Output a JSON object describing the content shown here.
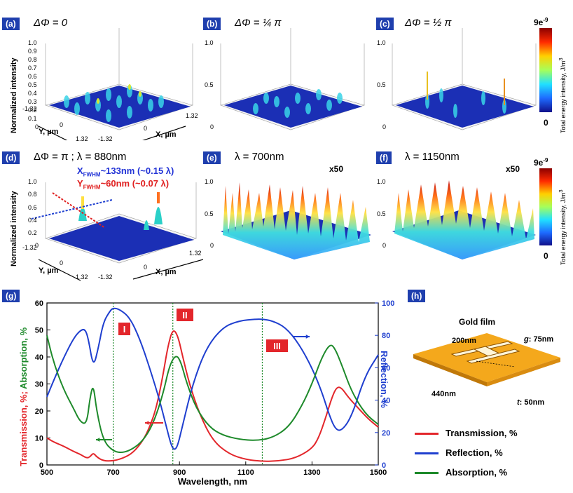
{
  "panels": {
    "a": {
      "tag": "(a)",
      "title": "ΔΦ = 0"
    },
    "b": {
      "tag": "(b)",
      "title": "ΔΦ = ¼ π"
    },
    "c": {
      "tag": "(c)",
      "title": "ΔΦ = ½ π"
    },
    "d": {
      "tag": "(d)",
      "title": "ΔΦ = π ; λ = 880nm",
      "xfwhm": "X",
      "xfwhm_sub": "FWHM",
      "xfwhm_val": "~133nm (~0.15 λ)",
      "yfwhm": "Y",
      "yfwhm_sub": "FWHM",
      "yfwhm_val": "~60nm (~0.07 λ)"
    },
    "e": {
      "tag": "(e)",
      "title": "λ = 700nm",
      "mult": "x50"
    },
    "f": {
      "tag": "(f)",
      "title": "λ = 1150nm",
      "mult": "x50"
    },
    "g": {
      "tag": "(g)"
    },
    "h": {
      "tag": "(h)"
    }
  },
  "surface_axes": {
    "z_ticks": [
      "1.0",
      "0.9",
      "0.8",
      "0.7",
      "0.6",
      "0.5",
      "0.4",
      "0.3",
      "0.2",
      "0.1",
      "0"
    ],
    "y_label": "Normalized intensity",
    "axis_y": "Y, µm",
    "axis_x": "X, µm",
    "t_neg": "-1.32",
    "t_zero": "0",
    "t_pos": "1.32"
  },
  "colorbar": {
    "max": "9e",
    "max_exp": "-9",
    "min": "0",
    "label": "Total energy intensity, J/m",
    "label_exp": "3"
  },
  "chart_data": {
    "type": "line",
    "xlabel": "Wavelength, nm",
    "ylabel_left": "Transmission, %; ",
    "ylabel_left2": "Absorption, %",
    "ylabel_right": "Reflection, %",
    "xlim": [
      500,
      1500
    ],
    "ylim_left": [
      0,
      60
    ],
    "ylim_right": [
      0,
      100
    ],
    "x_ticks": [
      "500",
      "700",
      "900",
      "1100",
      "1300",
      "1500"
    ],
    "y_left_ticks": [
      "0",
      "10",
      "20",
      "30",
      "40",
      "50",
      "60"
    ],
    "y_right_ticks": [
      "0",
      "20",
      "40",
      "60",
      "80",
      "100"
    ],
    "markers": [
      {
        "label": "I",
        "x": 700
      },
      {
        "label": "II",
        "x": 880
      },
      {
        "label": "III",
        "x": 1150
      }
    ],
    "series": [
      {
        "name": "Transmission, %",
        "color": "#e3262b",
        "axis": "left",
        "x": [
          500,
          520,
          550,
          580,
          600,
          620,
          630,
          640,
          650,
          670,
          700,
          730,
          760,
          790,
          810,
          830,
          850,
          865,
          880,
          895,
          910,
          930,
          960,
          1000,
          1050,
          1100,
          1150,
          1200,
          1250,
          1300,
          1320,
          1340,
          1360,
          1375,
          1390,
          1410,
          1440,
          1470,
          1500
        ],
        "y": [
          10,
          8.5,
          7,
          5,
          4,
          2.5,
          3,
          4.5,
          3,
          1.5,
          1.5,
          2.5,
          4.5,
          9,
          14,
          21,
          33,
          44,
          50.5,
          48,
          40,
          30,
          19,
          9,
          4,
          2,
          1.3,
          1.5,
          2.5,
          6,
          10,
          17,
          25,
          29,
          28.5,
          25,
          21,
          17,
          14
        ]
      },
      {
        "name": "Reflection, %",
        "color": "#1f3fcf",
        "axis": "right",
        "x": [
          500,
          520,
          550,
          580,
          600,
          615,
          625,
          640,
          655,
          670,
          690,
          700,
          720,
          750,
          780,
          810,
          840,
          860,
          875,
          885,
          895,
          910,
          940,
          980,
          1030,
          1080,
          1130,
          1150,
          1180,
          1220,
          1260,
          1300,
          1330,
          1350,
          1370,
          1390,
          1420,
          1460,
          1500
        ],
        "y": [
          42,
          52,
          66,
          78,
          83,
          84,
          78,
          60,
          72,
          88,
          95,
          97,
          96,
          91,
          78,
          60,
          40,
          24,
          12,
          9,
          12,
          25,
          50,
          72,
          85,
          89,
          90,
          90,
          89,
          85,
          75,
          60,
          45,
          32,
          22,
          21,
          30,
          55,
          68
        ]
      },
      {
        "name": "Absorption, %",
        "color": "#1e8a2b",
        "axis": "left",
        "x": [
          500,
          520,
          550,
          580,
          600,
          620,
          630,
          640,
          650,
          670,
          700,
          730,
          760,
          790,
          820,
          850,
          870,
          890,
          905,
          920,
          950,
          990,
          1030,
          1080,
          1130,
          1180,
          1230,
          1270,
          1300,
          1330,
          1355,
          1370,
          1390,
          1420,
          1460,
          1500
        ],
        "y": [
          48,
          38,
          28,
          21,
          16,
          15,
          25,
          30,
          20,
          9,
          5,
          4.5,
          6,
          9,
          15,
          26,
          37,
          41,
          38,
          31,
          21,
          14,
          11,
          9.5,
          9,
          10,
          14,
          22,
          30,
          40,
          45,
          43,
          37,
          27,
          19,
          15
        ]
      }
    ]
  },
  "legend": [
    "Transmission, %",
    "Reflection, %",
    "Absorption, %"
  ],
  "schematic": {
    "title": "Gold film",
    "d1": "200nm",
    "g_label": "g",
    "g_val": ": 75nm",
    "w": "440nm",
    "t_label": "t",
    "t_val": ": 50nm"
  },
  "roman": [
    "I",
    "II",
    "III"
  ]
}
